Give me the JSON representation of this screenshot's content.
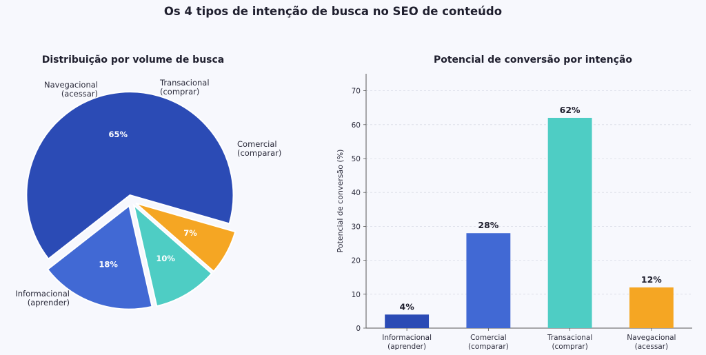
{
  "title": "Os 4 tipos de intenção de busca no SEO de conteúdo",
  "chart_data": [
    {
      "type": "pie",
      "title": "Distribuição por volume de busca",
      "slices": [
        {
          "label": [
            "Informacional",
            "(aprender)"
          ],
          "value": 65,
          "pct_label": "65%",
          "color": "#2b4bb5"
        },
        {
          "label": [
            "Comercial",
            "(comparar)"
          ],
          "value": 18,
          "pct_label": "18%",
          "color": "#4169d4"
        },
        {
          "label": [
            "Transacional",
            "(comprar)"
          ],
          "value": 10,
          "pct_label": "10%",
          "color": "#4ecdc4"
        },
        {
          "label": [
            "Navegacional",
            "(acessar)"
          ],
          "value": 7,
          "pct_label": "7%",
          "color": "#f5a623"
        }
      ]
    },
    {
      "type": "bar",
      "title": "Potencial de conversão por intenção",
      "ylabel": "Potencial de conversão (%)",
      "ylim": [
        0,
        75
      ],
      "yticks": [
        "0",
        "10",
        "20",
        "30",
        "40",
        "50",
        "60",
        "70"
      ],
      "grid": "horizontal dashed",
      "categories": [
        [
          "Informacional",
          "(aprender)"
        ],
        [
          "Comercial",
          "(comparar)"
        ],
        [
          "Transacional",
          "(comprar)"
        ],
        [
          "Navegacional",
          "(acessar)"
        ]
      ],
      "values": [
        4,
        28,
        62,
        12
      ],
      "value_labels": [
        "4%",
        "28%",
        "62%",
        "12%"
      ],
      "colors": [
        "#2b4bb5",
        "#4169d4",
        "#4ecdc4",
        "#f5a623"
      ]
    }
  ]
}
